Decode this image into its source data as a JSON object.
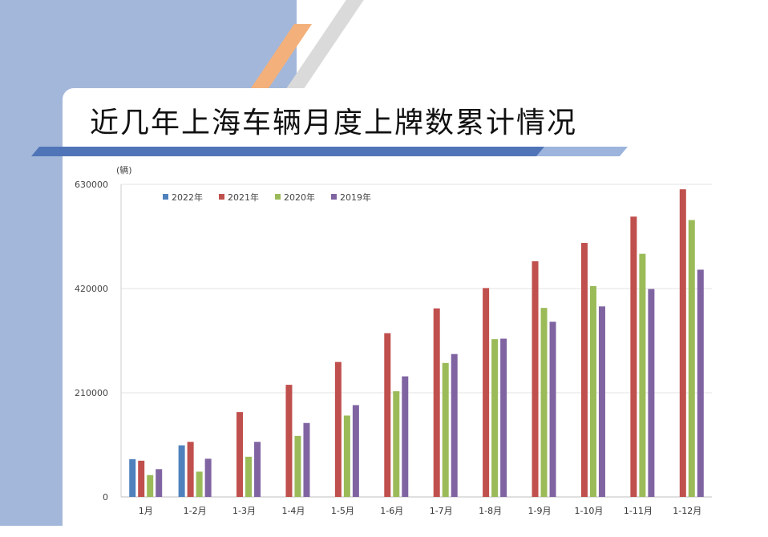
{
  "title": "近几年上海车辆月度上牌数累计情况",
  "chart_data": {
    "type": "bar",
    "unit": "(辆)",
    "categories": [
      "1月",
      "1-2月",
      "1-3月",
      "1-4月",
      "1-5月",
      "1-6月",
      "1-7月",
      "1-8月",
      "1-9月",
      "1-10月",
      "1-11月",
      "1-12月"
    ],
    "series": [
      {
        "name": "2022年",
        "color": "#4f81bd",
        "values": [
          76000,
          104000,
          null,
          null,
          null,
          null,
          null,
          null,
          null,
          null,
          null,
          null
        ]
      },
      {
        "name": "2021年",
        "color": "#c0504d",
        "values": [
          73000,
          111000,
          171000,
          226000,
          272000,
          330000,
          380000,
          421000,
          475000,
          512000,
          565000,
          620000
        ]
      },
      {
        "name": "2020年",
        "color": "#9bbb59",
        "values": [
          44000,
          51000,
          81000,
          123000,
          164000,
          213000,
          270000,
          318000,
          381000,
          425000,
          490000,
          558000
        ]
      },
      {
        "name": "2019年",
        "color": "#8064a2",
        "values": [
          56000,
          77000,
          111000,
          149000,
          185000,
          243000,
          288000,
          319000,
          353000,
          384000,
          419000,
          458000
        ]
      }
    ],
    "yticks": [
      "0",
      "210000",
      "420000",
      "630000"
    ],
    "ylim": [
      0,
      630000
    ],
    "grid": true,
    "legend_position": "top-left"
  }
}
